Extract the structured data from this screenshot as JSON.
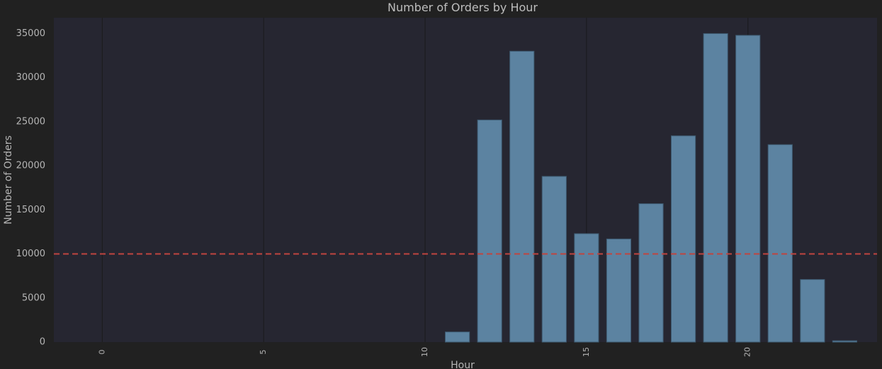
{
  "chart_data": {
    "type": "bar",
    "title": "Number of Orders by Hour",
    "xlabel": "Hour",
    "ylabel": "Number of Orders",
    "x": [
      11,
      12,
      13,
      14,
      15,
      16,
      17,
      18,
      19,
      20,
      21,
      22,
      23
    ],
    "values": [
      1150,
      25200,
      33000,
      18800,
      12300,
      11700,
      15700,
      23400,
      35000,
      34800,
      22400,
      7100,
      150
    ],
    "xlim": [
      -1.5,
      24
    ],
    "ylim": [
      0,
      36800
    ],
    "x_ticks": [
      0,
      5,
      10,
      15,
      20
    ],
    "y_ticks": [
      0,
      5000,
      10000,
      15000,
      20000,
      25000,
      30000,
      35000
    ],
    "reference_line": {
      "value": 10000,
      "style": "dashed"
    },
    "grid": {
      "x": true,
      "y": false
    },
    "colors": {
      "bar": "#5c83a1",
      "bar_edge": "#3d5a70",
      "plot_background": "#262631",
      "page_background": "#212121",
      "reference_line": "#c0443f",
      "grid": "#1c1c1f",
      "text": "#b5b5b5"
    }
  }
}
